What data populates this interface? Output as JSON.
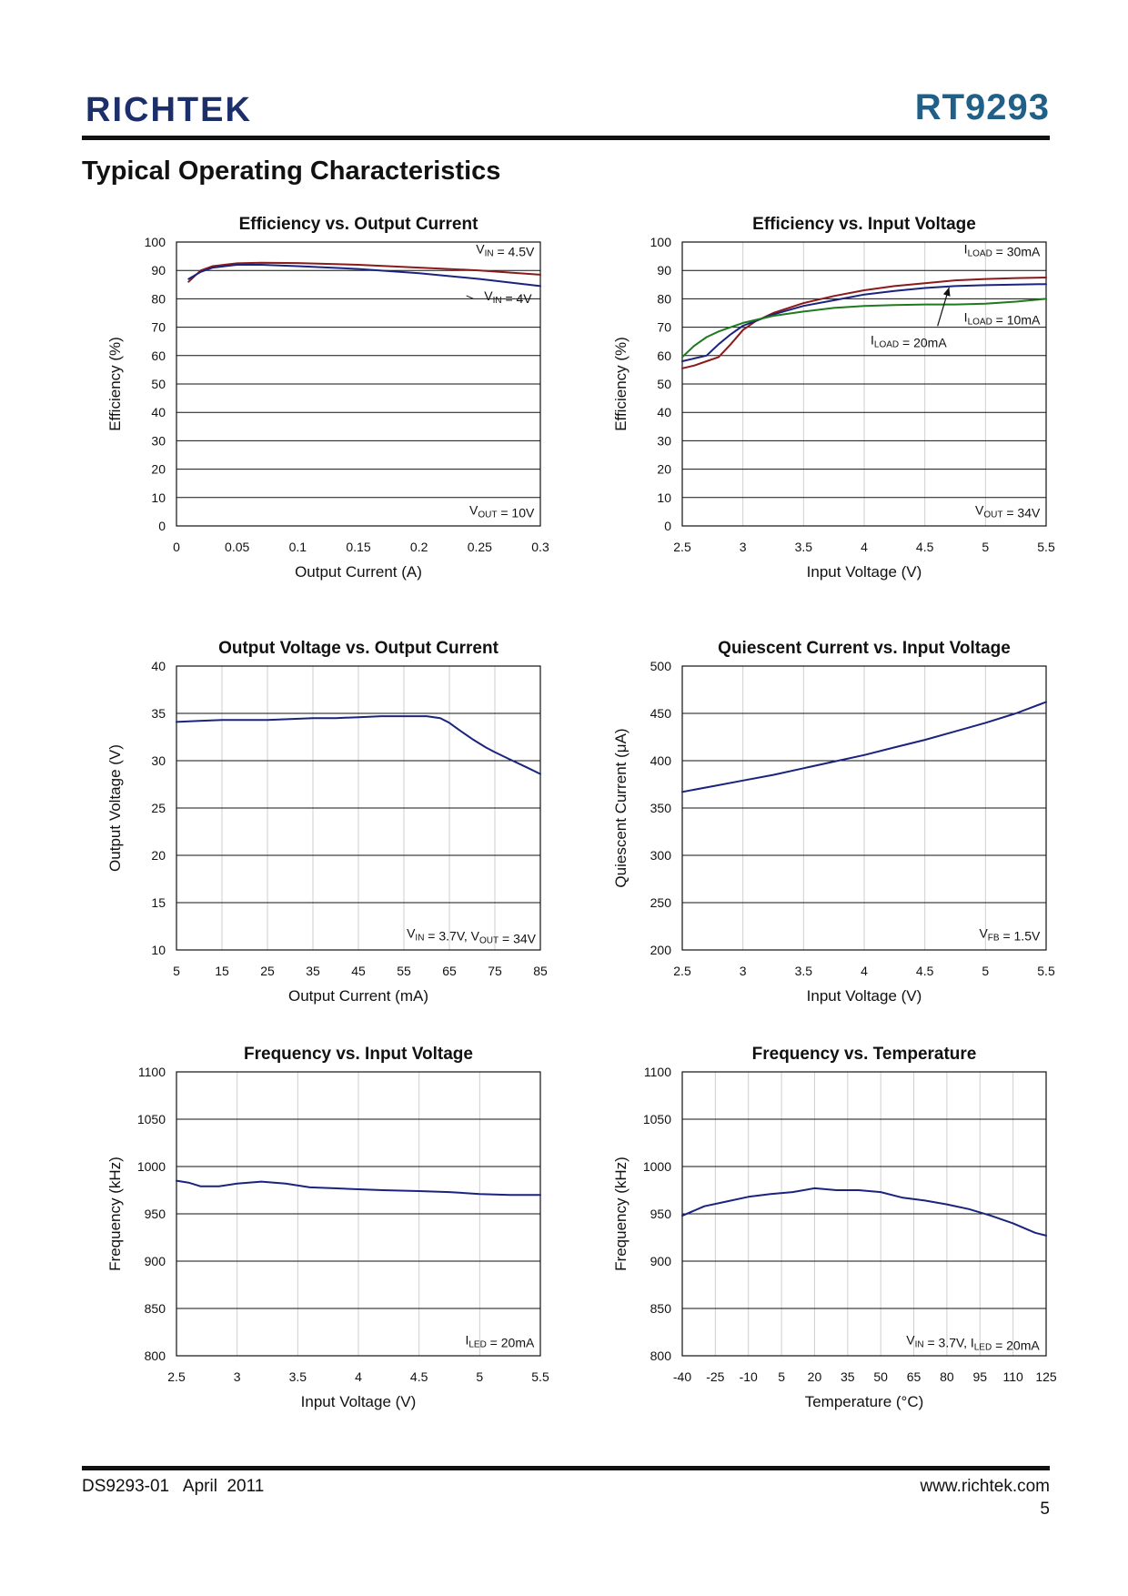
{
  "header": {
    "logo": "RICHTEK",
    "part_number": "RT9293",
    "section_title": "Typical Operating Characteristics"
  },
  "footer": {
    "doc": "DS9293-01   April  2011",
    "url": "www.richtek.com",
    "page": "5"
  },
  "chart_data": [
    {
      "id": "eff-iout",
      "type": "line",
      "title": "Efficiency vs. Output Current",
      "xlabel": "Output Current (A)",
      "ylabel": "Efficiency (%)",
      "xlim": [
        0,
        0.3
      ],
      "ylim": [
        0,
        100
      ],
      "xticks": [
        0,
        0.05,
        0.1,
        0.15,
        0.2,
        0.25,
        0.3
      ],
      "xtick_labels": [
        "0",
        "0.05",
        "0.1",
        "0.15",
        "0.2",
        "0.25",
        "0.3"
      ],
      "yticks": [
        0,
        10,
        20,
        30,
        40,
        50,
        60,
        70,
        80,
        90,
        100
      ],
      "ytick_labels": [
        "0",
        "10",
        "20",
        "30",
        "40",
        "50",
        "60",
        "70",
        "80",
        "90",
        "100"
      ],
      "grid": "horizontal",
      "series": [
        {
          "name": "VIN = 4.5V",
          "color": "#8b1a1a",
          "x": [
            0.01,
            0.02,
            0.03,
            0.05,
            0.07,
            0.1,
            0.15,
            0.2,
            0.25,
            0.3
          ],
          "y": [
            86,
            90,
            91.5,
            92.5,
            92.7,
            92.6,
            92,
            91,
            90,
            88.5
          ]
        },
        {
          "name": "VIN = 4V",
          "color": "#1a237e",
          "x": [
            0.01,
            0.02,
            0.03,
            0.05,
            0.07,
            0.1,
            0.15,
            0.2,
            0.25,
            0.3
          ],
          "y": [
            87,
            89.5,
            91,
            92,
            92,
            91.5,
            90.5,
            89,
            87,
            84.5
          ]
        }
      ],
      "annotations": [
        {
          "main": "V",
          "sub": "IN",
          "rest": " = 4.5V",
          "x": 0.295,
          "y": 96
        },
        {
          "main": "V",
          "sub": "IN",
          "rest": " = 4V",
          "x": 0.293,
          "y": 79.5,
          "leader_to": [
            0.245,
            80
          ]
        },
        {
          "main": "V",
          "sub": "OUT",
          "rest": " = 10V",
          "x": 0.295,
          "y": 4
        }
      ]
    },
    {
      "id": "eff-vin",
      "type": "line",
      "title": "Efficiency vs. Input Voltage",
      "xlabel": "Input Voltage (V)",
      "ylabel": "Efficiency (%)",
      "xlim": [
        2.5,
        5.5
      ],
      "ylim": [
        0,
        100
      ],
      "xticks": [
        2.5,
        3,
        3.5,
        4,
        4.5,
        5,
        5.5
      ],
      "xtick_labels": [
        "2.5",
        "3",
        "3.5",
        "4",
        "4.5",
        "5",
        "5.5"
      ],
      "yticks": [
        0,
        10,
        20,
        30,
        40,
        50,
        60,
        70,
        80,
        90,
        100
      ],
      "ytick_labels": [
        "0",
        "10",
        "20",
        "30",
        "40",
        "50",
        "60",
        "70",
        "80",
        "90",
        "100"
      ],
      "grid": "both",
      "series": [
        {
          "name": "ILOAD = 30mA",
          "color": "#8b1a1a",
          "x": [
            2.5,
            2.6,
            2.7,
            2.8,
            2.9,
            3.0,
            3.1,
            3.25,
            3.5,
            3.75,
            4.0,
            4.25,
            4.5,
            4.75,
            5.0,
            5.25,
            5.5
          ],
          "y": [
            55.5,
            56.5,
            58,
            59.5,
            64,
            69,
            72,
            75,
            78.5,
            81,
            83,
            84.5,
            85.5,
            86.5,
            87,
            87.3,
            87.5
          ]
        },
        {
          "name": "ILOAD = 20mA",
          "color": "#1a237e",
          "x": [
            2.5,
            2.6,
            2.7,
            2.8,
            2.9,
            3.0,
            3.25,
            3.5,
            3.75,
            4.0,
            4.25,
            4.5,
            4.75,
            5.0,
            5.25,
            5.5
          ],
          "y": [
            58,
            59,
            60,
            64,
            67.5,
            70.5,
            74.5,
            77.5,
            79.5,
            81.5,
            82.8,
            83.8,
            84.5,
            84.8,
            85,
            85.2
          ]
        },
        {
          "name": "ILOAD = 10mA",
          "color": "#1e7a1e",
          "x": [
            2.5,
            2.6,
            2.7,
            2.8,
            2.9,
            3.0,
            3.25,
            3.5,
            3.75,
            4.0,
            4.25,
            4.5,
            4.75,
            5.0,
            5.25,
            5.5
          ],
          "y": [
            59.5,
            63.5,
            66.5,
            68.5,
            70,
            71.5,
            74,
            75.5,
            76.8,
            77.5,
            77.8,
            78,
            78,
            78.3,
            79,
            80
          ]
        }
      ],
      "annotations": [
        {
          "main": "I",
          "sub": "LOAD",
          "rest": " = 30mA",
          "x": 5.45,
          "y": 96
        },
        {
          "main": "I",
          "sub": "LOAD",
          "rest": " = 10mA",
          "x": 5.45,
          "y": 72
        },
        {
          "main": "I",
          "sub": "LOAD",
          "rest": " = 20mA",
          "x": 4.68,
          "y": 64,
          "arrow_to": [
            4.7,
            84
          ]
        },
        {
          "main": "V",
          "sub": "OUT",
          "rest": " = 34V",
          "x": 5.45,
          "y": 4
        }
      ]
    },
    {
      "id": "vout-iout",
      "type": "line",
      "title": "Output Voltage vs. Output Current",
      "xlabel": "Output Current (mA)",
      "ylabel": "Output Voltage (V)",
      "xlim": [
        5,
        85
      ],
      "ylim": [
        10,
        40
      ],
      "xticks": [
        5,
        15,
        25,
        35,
        45,
        55,
        65,
        75,
        85
      ],
      "xtick_labels": [
        "5",
        "15",
        "25",
        "35",
        "45",
        "55",
        "65",
        "75",
        "85"
      ],
      "yticks": [
        10,
        15,
        20,
        25,
        30,
        35,
        40
      ],
      "ytick_labels": [
        "10",
        "15",
        "20",
        "25",
        "30",
        "35",
        "40"
      ],
      "grid": "both",
      "series": [
        {
          "name": "",
          "color": "#1a237e",
          "x": [
            5,
            10,
            15,
            20,
            25,
            30,
            35,
            40,
            45,
            50,
            55,
            60,
            63,
            65,
            67,
            70,
            73,
            75,
            78,
            82,
            85
          ],
          "y": [
            34.1,
            34.2,
            34.3,
            34.3,
            34.3,
            34.4,
            34.5,
            34.5,
            34.6,
            34.7,
            34.7,
            34.7,
            34.5,
            34.0,
            33.3,
            32.3,
            31.4,
            30.9,
            30.2,
            29.3,
            28.6
          ]
        }
      ],
      "annotations": [
        {
          "main": "V",
          "sub": "IN",
          "rest": " = 3.7V, ",
          "main2": "V",
          "sub2": "OUT",
          "rest2": " = 34V",
          "x": 84,
          "y": 11.3
        }
      ]
    },
    {
      "id": "iq-vin",
      "type": "line",
      "title": "Quiescent Current vs. Input Voltage",
      "xlabel": "Input Voltage (V)",
      "ylabel": "Quiescent Current (μA)",
      "xlim": [
        2.5,
        5.5
      ],
      "ylim": [
        200,
        500
      ],
      "xticks": [
        2.5,
        3,
        3.5,
        4,
        4.5,
        5,
        5.5
      ],
      "xtick_labels": [
        "2.5",
        "3",
        "3.5",
        "4",
        "4.5",
        "5",
        "5.5"
      ],
      "yticks": [
        200,
        250,
        300,
        350,
        400,
        450,
        500
      ],
      "ytick_labels": [
        "200",
        "250",
        "300",
        "350",
        "400",
        "450",
        "500"
      ],
      "grid": "both",
      "series": [
        {
          "name": "",
          "color": "#1a237e",
          "x": [
            2.5,
            2.75,
            3.0,
            3.25,
            3.5,
            3.75,
            4.0,
            4.25,
            4.5,
            4.75,
            5.0,
            5.25,
            5.5
          ],
          "y": [
            367,
            373,
            379,
            385,
            392,
            399,
            406,
            414,
            422,
            431,
            440,
            450,
            462
          ]
        }
      ],
      "annotations": [
        {
          "main": "V",
          "sub": "FB",
          "rest": " = 1.5V",
          "x": 5.45,
          "y": 213
        }
      ]
    },
    {
      "id": "freq-vin",
      "type": "line",
      "title": "Frequency vs. Input Voltage",
      "xlabel": "Input Voltage (V)",
      "ylabel": "Frequency (kHz)",
      "xlim": [
        2.5,
        5.5
      ],
      "ylim": [
        800,
        1100
      ],
      "xticks": [
        2.5,
        3,
        3.5,
        4,
        4.5,
        5,
        5.5
      ],
      "xtick_labels": [
        "2.5",
        "3",
        "3.5",
        "4",
        "4.5",
        "5",
        "5.5"
      ],
      "yticks": [
        800,
        850,
        900,
        950,
        1000,
        1050,
        1100
      ],
      "ytick_labels": [
        "800",
        "850",
        "900",
        "950",
        "1000",
        "1050",
        "1100"
      ],
      "grid": "both",
      "series": [
        {
          "name": "",
          "color": "#1a237e",
          "x": [
            2.5,
            2.6,
            2.7,
            2.85,
            3.0,
            3.2,
            3.4,
            3.6,
            3.8,
            4.0,
            4.2,
            4.5,
            4.75,
            5.0,
            5.25,
            5.5
          ],
          "y": [
            985,
            983,
            979,
            979,
            982,
            984,
            982,
            978,
            977,
            976,
            975,
            974,
            973,
            971,
            970,
            970
          ]
        }
      ],
      "annotations": [
        {
          "main": "I",
          "sub": "LED",
          "rest": " = 20mA",
          "x": 5.45,
          "y": 812
        }
      ]
    },
    {
      "id": "freq-temp",
      "type": "line",
      "title": "Frequency vs. Temperature",
      "xlabel": "Temperature (°C)",
      "ylabel": "Frequency (kHz)",
      "xlim": [
        -40,
        125
      ],
      "ylim": [
        800,
        1100
      ],
      "xticks": [
        -40,
        -25,
        -10,
        5,
        20,
        35,
        50,
        65,
        80,
        95,
        110,
        125
      ],
      "xtick_labels": [
        "-40",
        "-25",
        "-10",
        "5",
        "20",
        "35",
        "50",
        "65",
        "80",
        "95",
        "110",
        "125"
      ],
      "yticks": [
        800,
        850,
        900,
        950,
        1000,
        1050,
        1100
      ],
      "ytick_labels": [
        "800",
        "850",
        "900",
        "950",
        "1000",
        "1050",
        "1100"
      ],
      "grid": "both",
      "series": [
        {
          "name": "",
          "color": "#1a237e",
          "x": [
            -40,
            -30,
            -20,
            -10,
            0,
            10,
            20,
            30,
            40,
            50,
            60,
            70,
            80,
            90,
            100,
            110,
            120,
            125
          ],
          "y": [
            948,
            958,
            963,
            968,
            971,
            973,
            977,
            975,
            975,
            973,
            967,
            964,
            960,
            955,
            948,
            940,
            930,
            927
          ]
        }
      ],
      "annotations": [
        {
          "main": "V",
          "sub": "IN",
          "rest": " = 3.7V, ",
          "main2": "I",
          "sub2": "LED",
          "rest2": " = 20mA",
          "x": 122,
          "y": 812
        }
      ]
    }
  ]
}
